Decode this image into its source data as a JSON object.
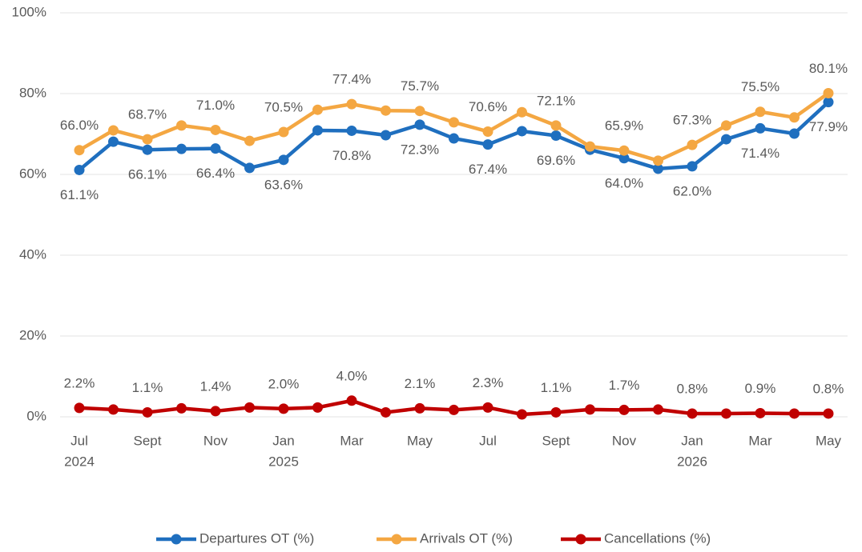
{
  "chart_data": {
    "type": "line",
    "categories": [
      "Jul",
      null,
      "Sept",
      null,
      "Nov",
      null,
      "Jan",
      null,
      "Mar",
      null,
      "May",
      null,
      "Jul",
      null,
      "Sept",
      null,
      "Nov",
      null,
      "Jan",
      null,
      "Mar",
      null,
      "May"
    ],
    "category_years": [
      "2024",
      null,
      null,
      null,
      null,
      null,
      "2025",
      null,
      null,
      null,
      null,
      null,
      null,
      null,
      null,
      null,
      null,
      null,
      "2026",
      null,
      null,
      null,
      null
    ],
    "ylim": [
      0,
      100
    ],
    "yticks": [
      {
        "value": 0,
        "label": "0%"
      },
      {
        "value": 20,
        "label": "20%"
      },
      {
        "value": 40,
        "label": "40%"
      },
      {
        "value": 60,
        "label": "60%"
      },
      {
        "value": 80,
        "label": "80%"
      },
      {
        "value": 100,
        "label": "100%"
      }
    ],
    "grid": true,
    "legend": "bottom",
    "series": [
      {
        "name": "Departures OT (%)",
        "color": "#1f6fbf",
        "label_position": "below",
        "values": [
          61.1,
          68.1,
          66.1,
          66.3,
          66.4,
          61.6,
          63.6,
          70.9,
          70.8,
          69.7,
          72.3,
          68.9,
          67.4,
          70.7,
          69.6,
          66.1,
          64.0,
          61.4,
          62.0,
          68.7,
          71.4,
          70.1,
          77.9
        ],
        "value_labels": [
          "61.1%",
          null,
          "66.1%",
          null,
          "66.4%",
          null,
          "63.6%",
          null,
          "70.8%",
          null,
          "72.3%",
          null,
          "67.4%",
          null,
          "69.6%",
          null,
          "64.0%",
          null,
          "62.0%",
          null,
          "71.4%",
          null,
          "77.9%"
        ]
      },
      {
        "name": "Arrivals OT (%)",
        "color": "#f4a742",
        "label_position": "above",
        "values": [
          66.0,
          70.9,
          68.7,
          72.1,
          71.0,
          68.3,
          70.5,
          76.0,
          77.4,
          75.8,
          75.7,
          72.9,
          70.6,
          75.4,
          72.1,
          66.9,
          65.9,
          63.4,
          67.3,
          72.1,
          75.5,
          74.1,
          80.1
        ],
        "value_labels": [
          "66.0%",
          null,
          "68.7%",
          null,
          "71.0%",
          null,
          "70.5%",
          null,
          "77.4%",
          null,
          "75.7%",
          null,
          "70.6%",
          null,
          "72.1%",
          null,
          "65.9%",
          null,
          "67.3%",
          null,
          "75.5%",
          null,
          "80.1%"
        ]
      },
      {
        "name": "Cancellations (%)",
        "color": "#c00000",
        "label_position": "above",
        "values": [
          2.2,
          1.8,
          1.1,
          2.1,
          1.4,
          2.3,
          2.0,
          2.3,
          4.0,
          1.1,
          2.1,
          1.7,
          2.3,
          0.6,
          1.1,
          1.8,
          1.7,
          1.8,
          0.8,
          0.8,
          0.9,
          0.8,
          0.8
        ],
        "value_labels": [
          "2.2%",
          null,
          "1.1%",
          null,
          "1.4%",
          null,
          "2.0%",
          null,
          "4.0%",
          null,
          "2.1%",
          null,
          "2.3%",
          null,
          "1.1%",
          null,
          "1.7%",
          null,
          "0.8%",
          null,
          "0.9%",
          null,
          "0.8%"
        ]
      }
    ]
  }
}
